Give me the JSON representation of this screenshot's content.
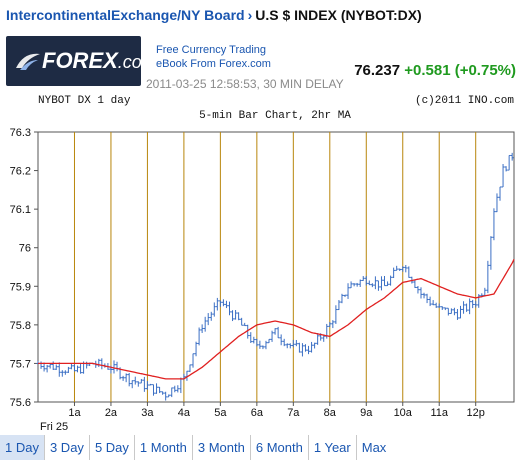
{
  "header": {
    "exchange_link": "IntercontinentalExchange/NY Board",
    "separator": "›",
    "instrument": "U.S $ INDEX (NYBOT:DX)"
  },
  "promo": {
    "logo_text_bold": "FOREX",
    "logo_text_dom": ".com",
    "line1": "Free Currency Trading",
    "line2": "eBook From Forex.com"
  },
  "quote": {
    "timestamp": "2011-03-25 12:58:53, 30 MIN DELAY",
    "last": "76.237",
    "change": "+0.581 (+0.75%)"
  },
  "colors": {
    "change": "#1f9a1f",
    "bars": "#3b6fc4",
    "ma": "#e02020",
    "hour_lines": "#b8860b",
    "selected_tab_bg": "#d7e3f4",
    "link": "#1a56b0"
  },
  "chart_data": {
    "type": "line",
    "header_left": "NYBOT DX 1 day",
    "header_right": "(c)2011 INO.com",
    "title": "5-min Bar Chart, 2hr MA",
    "ylim": [
      75.6,
      76.3
    ],
    "yticks": [
      "76.3",
      "76.2",
      "76.1",
      "76",
      "75.9",
      "75.8",
      "75.7",
      "75.6"
    ],
    "ytick_values": [
      76.3,
      76.2,
      76.1,
      76.0,
      75.9,
      75.8,
      75.7,
      75.6
    ],
    "day_label": "Fri 25",
    "xtick_labels": [
      "1a",
      "2a",
      "3a",
      "4a",
      "5a",
      "6a",
      "7a",
      "8a",
      "9a",
      "10a",
      "11a",
      "12p"
    ],
    "xtick_hours": [
      1,
      2,
      3,
      4,
      5,
      6,
      7,
      8,
      9,
      10,
      11,
      12
    ],
    "x_range_hours": [
      0,
      13.05
    ],
    "grid": "vertical hour lines",
    "series": [
      {
        "style": "ohlc-bars",
        "x_hours": [
          0.0,
          0.5,
          1.0,
          1.5,
          2.0,
          2.5,
          3.0,
          3.5,
          4.0,
          4.5,
          5.0,
          5.5,
          6.0,
          6.5,
          7.0,
          7.5,
          8.0,
          8.5,
          9.0,
          9.5,
          10.0,
          10.5,
          11.0,
          11.5,
          12.0,
          12.25,
          12.5,
          12.75,
          13.0
        ],
        "values": [
          75.7,
          75.69,
          75.68,
          75.7,
          75.69,
          75.66,
          75.64,
          75.62,
          75.66,
          75.8,
          75.86,
          75.81,
          75.74,
          75.78,
          75.74,
          75.74,
          75.8,
          75.9,
          75.92,
          75.9,
          75.96,
          75.88,
          75.84,
          75.83,
          75.86,
          75.9,
          76.1,
          76.2,
          76.24
        ]
      },
      {
        "style": "moving-average",
        "x_hours": [
          0.0,
          0.5,
          1.0,
          1.5,
          2.0,
          2.5,
          3.0,
          3.5,
          4.0,
          4.5,
          5.0,
          5.5,
          6.0,
          6.5,
          7.0,
          7.5,
          8.0,
          8.5,
          9.0,
          9.5,
          10.0,
          10.5,
          11.0,
          11.5,
          12.0,
          12.5,
          13.0,
          13.05
        ],
        "values": [
          75.7,
          75.7,
          75.7,
          75.7,
          75.69,
          75.68,
          75.67,
          75.66,
          75.66,
          75.69,
          75.73,
          75.77,
          75.8,
          75.81,
          75.8,
          75.78,
          75.77,
          75.8,
          75.84,
          75.87,
          75.91,
          75.92,
          75.9,
          75.88,
          75.87,
          75.88,
          75.96,
          75.97
        ]
      }
    ]
  },
  "range_tabs": [
    {
      "label": "1 Day",
      "selected": true
    },
    {
      "label": "3 Day",
      "selected": false
    },
    {
      "label": "5 Day",
      "selected": false
    },
    {
      "label": "1 Month",
      "selected": false
    },
    {
      "label": "3 Month",
      "selected": false
    },
    {
      "label": "6 Month",
      "selected": false
    },
    {
      "label": "1 Year",
      "selected": false
    },
    {
      "label": "Max",
      "selected": false
    }
  ]
}
